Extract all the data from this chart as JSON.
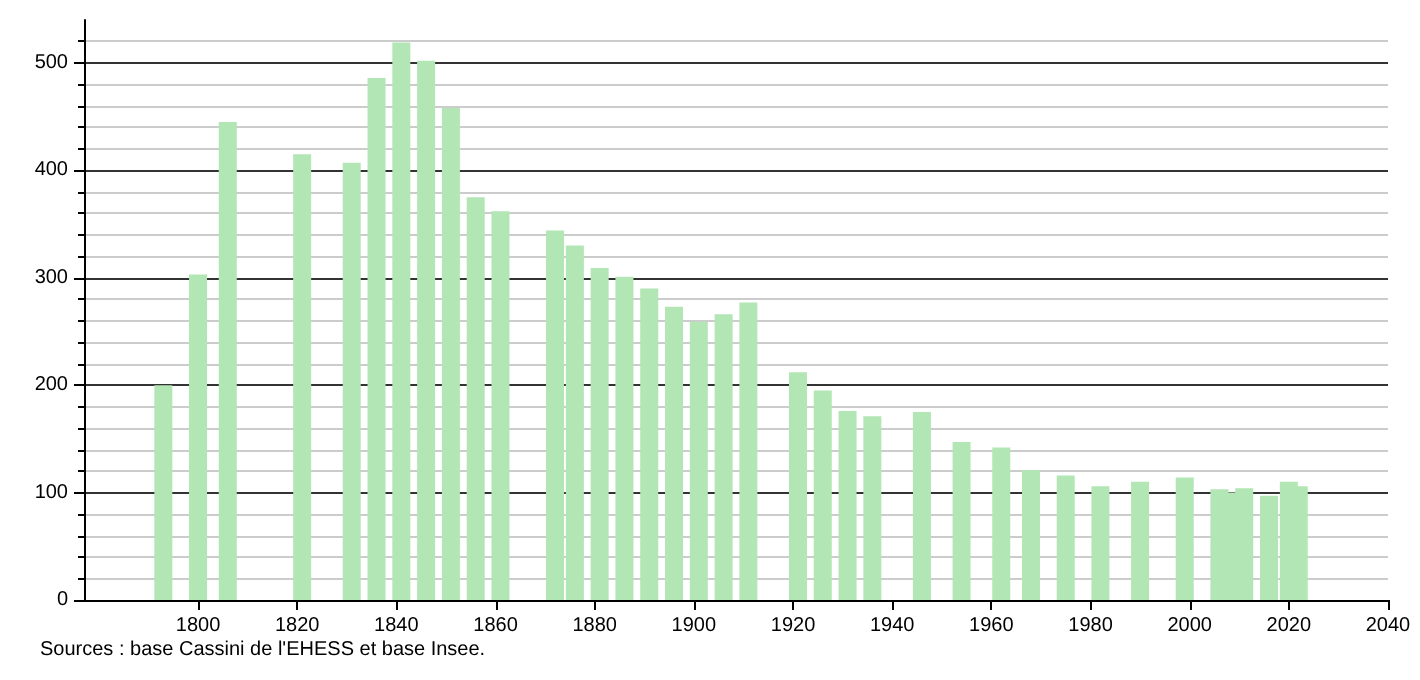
{
  "chart_data": {
    "type": "bar",
    "x": [
      1793,
      1800,
      1806,
      1821,
      1831,
      1836,
      1841,
      1846,
      1851,
      1856,
      1861,
      1872,
      1876,
      1881,
      1886,
      1891,
      1896,
      1901,
      1906,
      1911,
      1921,
      1926,
      1931,
      1936,
      1946,
      1954,
      1962,
      1968,
      1975,
      1982,
      1990,
      1999,
      2006,
      2008,
      2011,
      2016,
      2020,
      2022
    ],
    "values": [
      200,
      303,
      445,
      415,
      407,
      486,
      519,
      502,
      458,
      375,
      362,
      344,
      330,
      309,
      301,
      290,
      273,
      259,
      266,
      277,
      212,
      195,
      176,
      171,
      175,
      147,
      142,
      121,
      116,
      106,
      110,
      114,
      103,
      100,
      104,
      97,
      110,
      106
    ],
    "color": "#b3e6b5",
    "xlim": [
      1777,
      2040
    ],
    "xticks": [
      1800,
      1820,
      1840,
      1860,
      1880,
      1900,
      1920,
      1940,
      1960,
      1980,
      2000,
      2020,
      2040
    ],
    "ylim": [
      0,
      540
    ],
    "yticks": [
      0,
      100,
      200,
      300,
      400,
      500
    ],
    "grid": "y",
    "annotations": [
      "Sources : base Cassini de l'EHESS et base Insee."
    ]
  }
}
